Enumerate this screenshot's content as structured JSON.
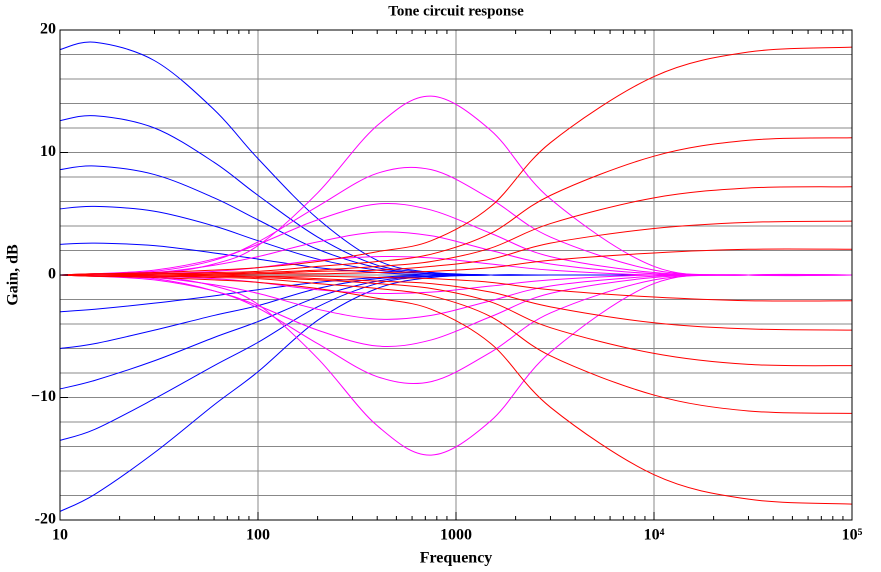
{
  "chart_data": {
    "type": "line",
    "title": "Tone circuit response",
    "xlabel": "Frequency",
    "ylabel": "Gain, dB",
    "xscale": "log",
    "xlim": [
      10,
      100000
    ],
    "ylim": [
      -20,
      20
    ],
    "xticks": [
      10,
      100,
      1000,
      {
        "value": 10000,
        "label": "10⁴"
      },
      {
        "value": 100000,
        "label": "10⁵"
      }
    ],
    "yticks": [
      -20,
      {
        "value": -10,
        "label": "−10"
      },
      0,
      10,
      20
    ],
    "ygridlines": [
      -18,
      -16,
      -14,
      -12,
      -10,
      -8,
      -6,
      -4,
      -2,
      0,
      2,
      4,
      6,
      8,
      10,
      12,
      14,
      16,
      18
    ],
    "xgridlines": [
      100,
      1000,
      10000
    ],
    "grid": true,
    "x": [
      10,
      15,
      30,
      60,
      100,
      200,
      400,
      750,
      1500,
      3000,
      10000,
      30000,
      100000
    ],
    "series": [
      {
        "color": "#0000ff",
        "values": [
          18.4,
          19,
          17.5,
          13.5,
          9.5,
          4.6,
          1.2,
          0.2,
          0,
          0,
          0,
          0,
          0
        ]
      },
      {
        "color": "#0000ff",
        "values": [
          12.6,
          13,
          12,
          9.2,
          6.5,
          3.1,
          0.8,
          0.2,
          0,
          0,
          0,
          0,
          0
        ]
      },
      {
        "color": "#0000ff",
        "values": [
          8.6,
          8.9,
          8.2,
          6.3,
          4.5,
          2.1,
          0.6,
          0.1,
          0,
          0,
          0,
          0,
          0
        ]
      },
      {
        "color": "#0000ff",
        "values": [
          5.4,
          5.6,
          5.2,
          4,
          2.8,
          1.3,
          0.4,
          0.1,
          0,
          0,
          0,
          0,
          0
        ]
      },
      {
        "color": "#0000ff",
        "values": [
          2.5,
          2.6,
          2.4,
          1.8,
          1.3,
          0.6,
          0.2,
          0,
          0,
          0,
          0,
          0,
          0
        ]
      },
      {
        "color": "#0000ff",
        "values": [
          -3,
          -2.8,
          -2.3,
          -1.7,
          -1.2,
          -0.6,
          -0.2,
          0,
          0,
          0,
          0,
          0,
          0
        ]
      },
      {
        "color": "#0000ff",
        "values": [
          -6,
          -5.6,
          -4.5,
          -3.3,
          -2.5,
          -1.1,
          -0.3,
          -0.1,
          0,
          0,
          0,
          0,
          0
        ]
      },
      {
        "color": "#0000ff",
        "values": [
          -9.3,
          -8.6,
          -7,
          -5.1,
          -3.8,
          -1.8,
          -0.5,
          -0.1,
          0,
          0,
          0,
          0,
          0
        ]
      },
      {
        "color": "#0000ff",
        "values": [
          -13.5,
          -12.6,
          -10.1,
          -7.4,
          -5.5,
          -2.6,
          -0.7,
          -0.1,
          0,
          0,
          0,
          0,
          0
        ]
      },
      {
        "color": "#0000ff",
        "values": [
          -19.3,
          -17.9,
          -14.5,
          -10.6,
          -7.9,
          -3.7,
          -1.1,
          -0.2,
          0,
          0,
          0,
          0,
          0
        ]
      },
      {
        "color": "#ff00ff",
        "values": [
          0,
          0,
          0.1,
          0.9,
          2.4,
          6.7,
          12.2,
          14.6,
          11.8,
          6.2,
          0.7,
          0,
          0
        ]
      },
      {
        "color": "#ff00ff",
        "values": [
          0,
          0.1,
          0.3,
          1.2,
          2.7,
          5.6,
          8.3,
          8.6,
          6.2,
          3.1,
          0.4,
          0,
          0
        ]
      },
      {
        "color": "#ff00ff",
        "values": [
          0,
          0.1,
          0.4,
          1.3,
          2.5,
          4.5,
          5.8,
          5.3,
          3.4,
          1.5,
          0.2,
          0,
          0
        ]
      },
      {
        "color": "#ff00ff",
        "values": [
          0,
          0,
          0.2,
          0.8,
          1.5,
          2.7,
          3.5,
          3.2,
          2,
          0.9,
          0.1,
          0,
          0
        ]
      },
      {
        "color": "#ff00ff",
        "values": [
          0,
          0,
          0.1,
          0.3,
          0.6,
          1.2,
          1.5,
          1.4,
          0.9,
          0.4,
          0,
          0,
          0
        ]
      },
      {
        "color": "#ff00ff",
        "values": [
          0,
          0,
          -0.1,
          -0.3,
          -0.6,
          -1.2,
          -1.5,
          -1.4,
          -0.9,
          -0.4,
          0,
          0,
          0
        ]
      },
      {
        "color": "#ff00ff",
        "values": [
          0,
          0,
          -0.2,
          -0.8,
          -1.5,
          -2.8,
          -3.6,
          -3.3,
          -2.1,
          -0.9,
          -0.1,
          0,
          0
        ]
      },
      {
        "color": "#ff00ff",
        "values": [
          0,
          -0.1,
          -0.4,
          -1.3,
          -2.5,
          -4.5,
          -5.8,
          -5.3,
          -3.4,
          -1.5,
          -0.2,
          0,
          0
        ]
      },
      {
        "color": "#ff00ff",
        "values": [
          0,
          -0.1,
          -0.3,
          -1.3,
          -2.7,
          -5.6,
          -8.3,
          -8.7,
          -6.3,
          -3.1,
          -0.4,
          0,
          0
        ]
      },
      {
        "color": "#ff00ff",
        "values": [
          0,
          0,
          -0.1,
          -0.9,
          -2.4,
          -6.8,
          -12.3,
          -14.7,
          -11.9,
          -6.3,
          -0.7,
          0,
          0
        ]
      },
      {
        "color": "#ff0000",
        "values": [
          0,
          0.1,
          0.2,
          0.4,
          0.6,
          1.1,
          1.9,
          2.8,
          5.6,
          10.8,
          16.2,
          18.2,
          18.6
        ]
      },
      {
        "color": "#ff0000",
        "values": [
          0,
          0.1,
          0.1,
          0.2,
          0.3,
          0.7,
          1.1,
          1.7,
          3.4,
          6.5,
          9.7,
          11,
          11.2
        ]
      },
      {
        "color": "#ff0000",
        "values": [
          0,
          0,
          0.1,
          0.1,
          0.2,
          0.4,
          0.7,
          1.1,
          2.2,
          4.2,
          6.3,
          7.1,
          7.2
        ]
      },
      {
        "color": "#ff0000",
        "values": [
          0,
          0,
          0,
          0.1,
          0.1,
          0.3,
          0.4,
          0.7,
          1.3,
          2.6,
          3.8,
          4.3,
          4.4
        ]
      },
      {
        "color": "#ff0000",
        "values": [
          0,
          0,
          0,
          0,
          0.1,
          0.1,
          0.2,
          0.3,
          0.6,
          1.2,
          1.8,
          2.1,
          2.1
        ]
      },
      {
        "color": "#ff0000",
        "values": [
          0,
          0,
          0,
          0,
          -0.1,
          -0.1,
          -0.2,
          -0.3,
          -0.6,
          -1.2,
          -1.8,
          -2.1,
          -2.1
        ]
      },
      {
        "color": "#ff0000",
        "values": [
          0,
          0,
          0,
          -0.1,
          -0.1,
          -0.3,
          -0.5,
          -0.7,
          -1.4,
          -2.6,
          -3.9,
          -4.4,
          -4.5
        ]
      },
      {
        "color": "#ff0000",
        "values": [
          0,
          0,
          -0.1,
          -0.1,
          -0.2,
          -0.4,
          -0.7,
          -1.1,
          -2.2,
          -4.3,
          -6.4,
          -7.3,
          -7.4
        ]
      },
      {
        "color": "#ff0000",
        "values": [
          0,
          -0.1,
          -0.1,
          -0.2,
          -0.3,
          -0.7,
          -1.1,
          -1.7,
          -3.4,
          -6.6,
          -9.8,
          -11.1,
          -11.3
        ]
      },
      {
        "color": "#ff0000",
        "values": [
          0,
          -0.1,
          -0.2,
          -0.4,
          -0.6,
          -1.1,
          -1.9,
          -2.8,
          -5.6,
          -10.8,
          -16.3,
          -18.3,
          -18.7
        ]
      }
    ]
  }
}
